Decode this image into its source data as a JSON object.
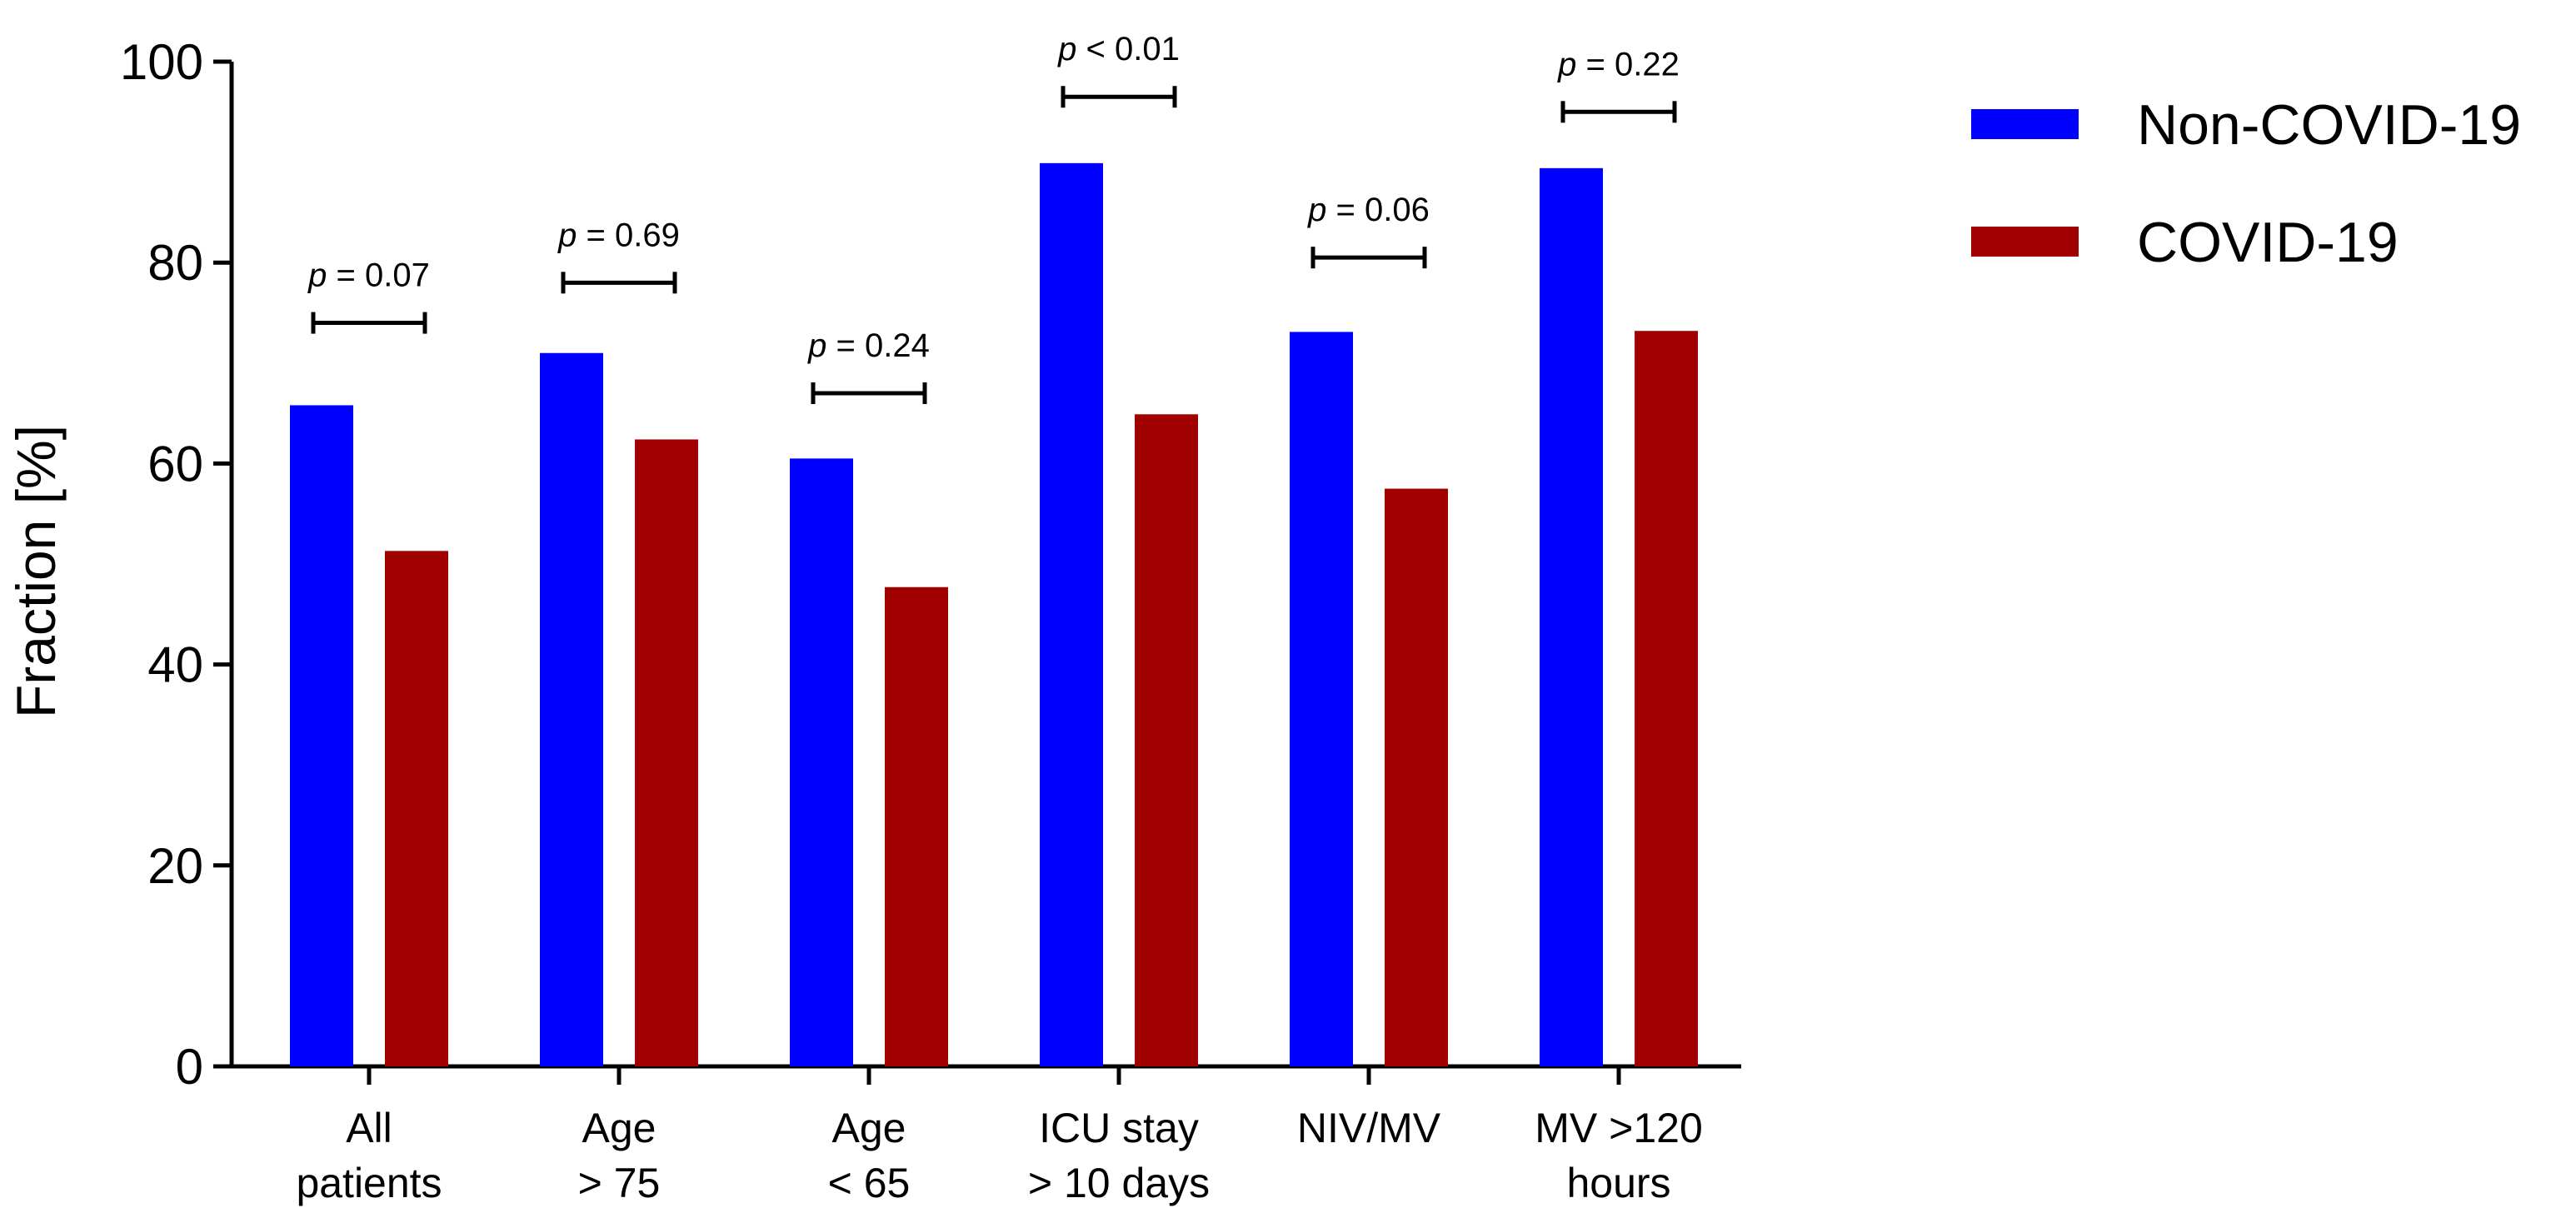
{
  "chart_data": {
    "type": "bar",
    "title": "",
    "xlabel": "",
    "ylabel": "Fraction [%]",
    "ylim": [
      0,
      100
    ],
    "yticks": [
      0,
      20,
      40,
      60,
      80,
      100
    ],
    "categories": [
      [
        "All",
        "patients"
      ],
      [
        "Age",
        "> 75"
      ],
      [
        "Age",
        "< 65"
      ],
      [
        "ICU stay",
        "> 10 days"
      ],
      [
        "NIV/MV"
      ],
      [
        "MV >120",
        "hours"
      ]
    ],
    "series": [
      {
        "name": "Non-COVID-19",
        "color": "#0000ff",
        "values": [
          65.8,
          71.0,
          60.5,
          89.9,
          73.1,
          89.4
        ]
      },
      {
        "name": "COVID-19",
        "color": "#a00000",
        "values": [
          51.3,
          62.4,
          47.7,
          64.9,
          57.5,
          73.2
        ]
      }
    ],
    "annotations": [
      {
        "p_symbol": "p",
        "p_text": " = 0.07",
        "level": 74
      },
      {
        "p_symbol": "p",
        "p_text": " = 0.69",
        "level": 78
      },
      {
        "p_symbol": "p",
        "p_text": " = 0.24",
        "level": 67
      },
      {
        "p_symbol": "p",
        "p_text": " < 0.01",
        "level": 96.5
      },
      {
        "p_symbol": "p",
        "p_text": " = 0.06",
        "level": 80.5
      },
      {
        "p_symbol": "p",
        "p_text": " = 0.22",
        "level": 95
      }
    ],
    "legend_position": "top-right",
    "grid": false
  }
}
